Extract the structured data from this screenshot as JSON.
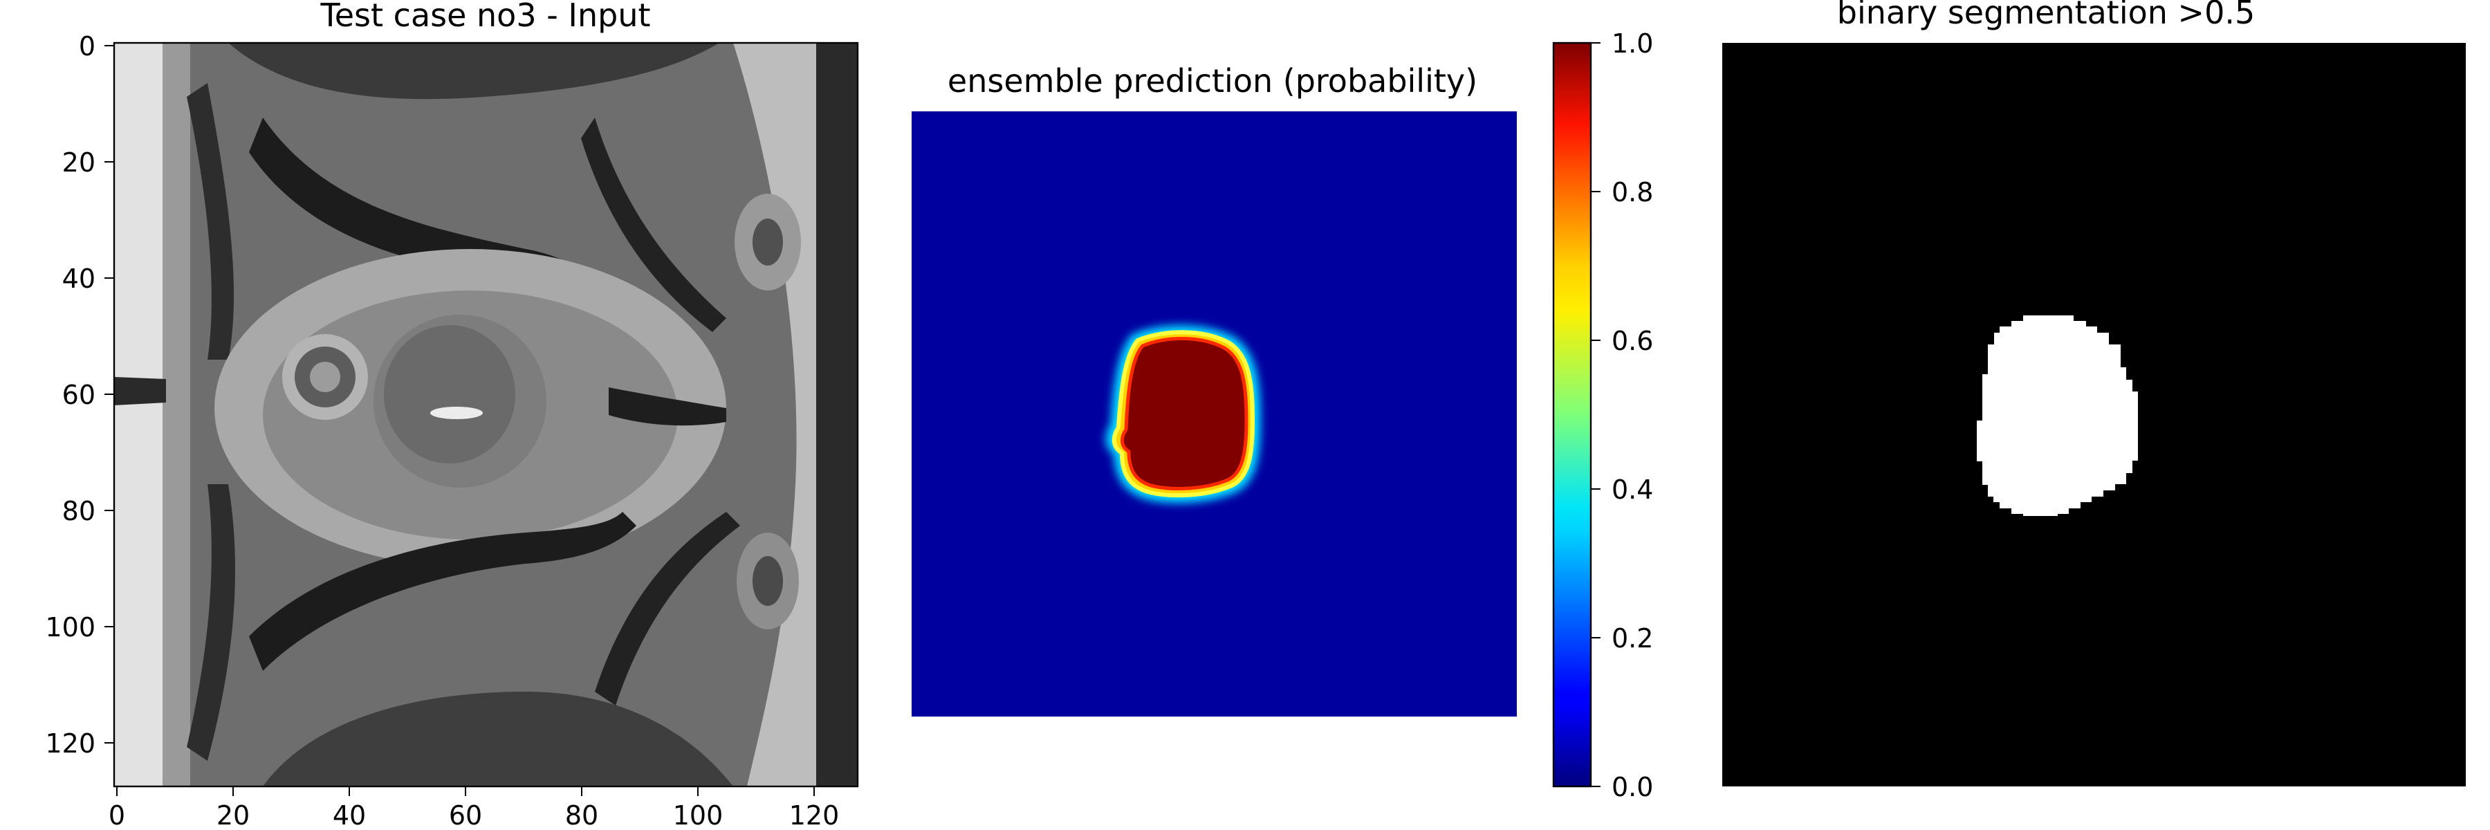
{
  "chart_data": [
    {
      "type": "heatmap",
      "title": "Test case no3 - Input",
      "colormap": "gray",
      "xlabel": "",
      "ylabel": "",
      "xlim": [
        0,
        128
      ],
      "ylim": [
        128,
        0
      ],
      "x_ticks": [
        "0",
        "20",
        "40",
        "60",
        "80",
        "100",
        "120"
      ],
      "y_ticks": [
        "0",
        "20",
        "40",
        "60",
        "80",
        "100",
        "120"
      ]
    },
    {
      "type": "heatmap",
      "title": "ensemble prediction (probability)",
      "colormap": "jet",
      "axes_visible": false,
      "region": {
        "x_range": [
          36,
          59
        ],
        "y_range": [
          50,
          78
        ],
        "value": 1.0,
        "background": 0.0
      },
      "colorbar": {
        "range": [
          0.0,
          1.0
        ],
        "ticks": [
          "0.0",
          "0.2",
          "0.4",
          "0.6",
          "0.8",
          "1.0"
        ]
      }
    },
    {
      "type": "heatmap",
      "title": "binary segmentation >0.5",
      "colormap": "binary",
      "axes_visible": false,
      "region": {
        "x_range": [
          36,
          59
        ],
        "y_range": [
          50,
          78
        ],
        "value": 1,
        "background": 0
      }
    }
  ]
}
